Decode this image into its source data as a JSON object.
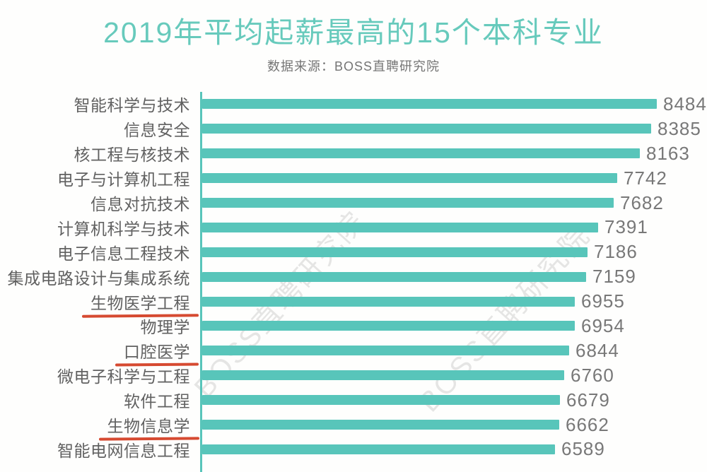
{
  "title": "2019年平均起薪最高的15个本科专业",
  "subtitle": "数据来源：BOSS直聘研究院",
  "watermark": "BOSS直聘研究院",
  "colors": {
    "bar": "#58c5ba",
    "title": "#67cabc",
    "underline": "#d64a31",
    "label_text": "#616161",
    "value_text": "#787878",
    "watermark": "#b0b0b0"
  },
  "chart_data": {
    "type": "bar",
    "orientation": "horizontal",
    "title": "2019年平均起薪最高的15个本科专业",
    "source": "数据来源：BOSS直聘研究院",
    "categories": [
      "智能科学与技术",
      "信息安全",
      "核工程与核技术",
      "电子与计算机工程",
      "信息对抗技术",
      "计算机科学与技术",
      "电子信息工程技术",
      "集成电路设计与集成系统",
      "生物医学工程",
      "物理学",
      "口腔医学",
      "微电子科学与工程",
      "软件工程",
      "生物信息学",
      "智能电网信息工程"
    ],
    "values": [
      8484,
      8385,
      8163,
      7742,
      7682,
      7391,
      7186,
      7159,
      6955,
      6954,
      6844,
      6760,
      6679,
      6662,
      6589
    ],
    "underlined_categories": [
      "生物医学工程",
      "口腔医学",
      "生物信息学"
    ],
    "xlim": [
      0,
      8484
    ],
    "value_labels_shown": true,
    "grid": false,
    "legend": false
  }
}
